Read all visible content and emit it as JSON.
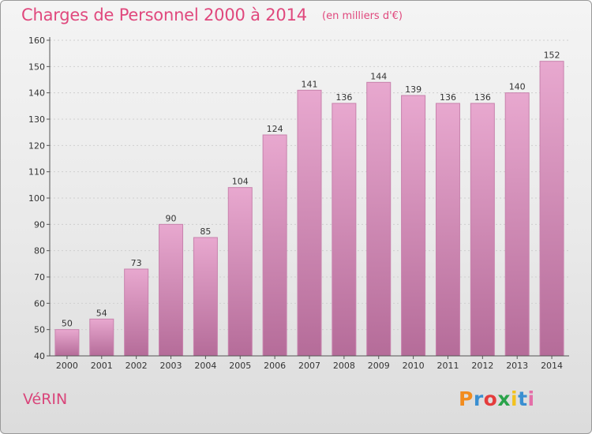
{
  "header": {
    "title": "Charges de Personnel 2000 à 2014",
    "subtitle": "(en milliers d'€)"
  },
  "footer": {
    "commune": "VéRIN",
    "logo_letters": [
      "P",
      "r",
      "o",
      "x",
      "i",
      "t",
      "i"
    ],
    "logo_colors": [
      "#f28c1e",
      "#3a8fd1",
      "#e43c3c",
      "#2aa34a",
      "#f2c21e",
      "#3a8fd1",
      "#e46fa8"
    ]
  },
  "colors": {
    "bar_top": "#e8a8cf",
    "bar_bottom": "#b56c99",
    "bar_stroke": "#c882ad",
    "axis": "#555555",
    "grid": "#cfcfcf"
  },
  "chart_data": {
    "type": "bar",
    "title": "Charges de Personnel 2000 à 2014",
    "subtitle": "(en milliers d'€)",
    "categories": [
      "2000",
      "2001",
      "2002",
      "2003",
      "2004",
      "2005",
      "2006",
      "2007",
      "2008",
      "2009",
      "2010",
      "2011",
      "2012",
      "2013",
      "2014"
    ],
    "values": [
      50,
      54,
      73,
      90,
      85,
      104,
      124,
      141,
      136,
      144,
      139,
      136,
      136,
      140,
      152
    ],
    "ylim": [
      40,
      160
    ],
    "yticks": [
      40,
      50,
      60,
      70,
      80,
      90,
      100,
      110,
      120,
      130,
      140,
      150,
      160
    ],
    "grid": true,
    "legend": false
  }
}
